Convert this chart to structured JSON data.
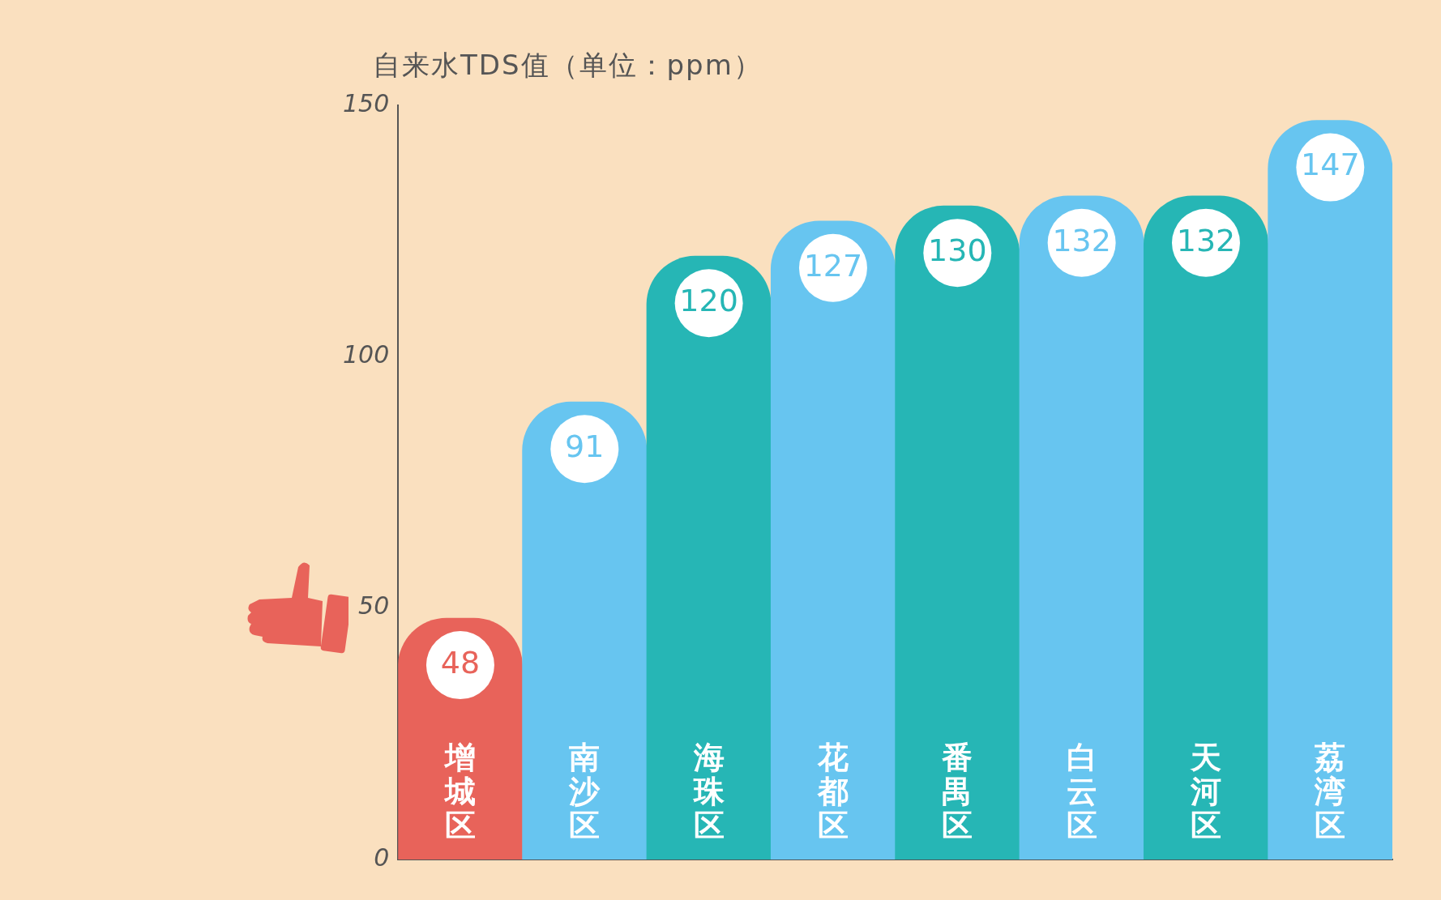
{
  "chart_data": {
    "type": "bar",
    "title": "自来水TDS值（单位：ppm）",
    "categories": [
      "增城区",
      "南沙区",
      "海珠区",
      "花都区",
      "番禺区",
      "白云区",
      "天河区",
      "荔湾区"
    ],
    "values": [
      48,
      91,
      120,
      127,
      130,
      132,
      132,
      147
    ],
    "colors": [
      "#e8635a",
      "#67c5f0",
      "#26b6b5",
      "#67c5f0",
      "#26b6b5",
      "#67c5f0",
      "#26b6b5",
      "#67c5f0"
    ],
    "ylim": [
      0,
      150
    ],
    "yticks": [
      0,
      50,
      100,
      150
    ],
    "grid": false,
    "legend": false,
    "data_labels": true
  }
}
